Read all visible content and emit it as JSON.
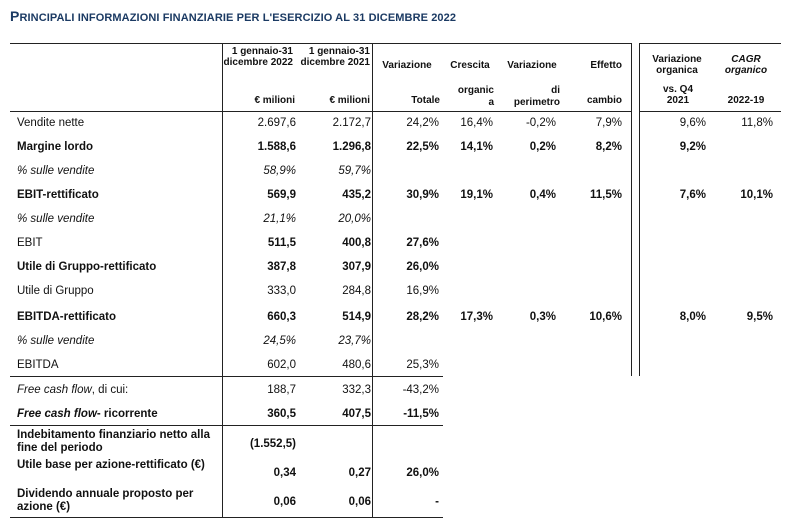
{
  "title": {
    "lead": "P",
    "rest": "RINCIPALI INFORMAZIONI FINANZIARIE PER L'ESERCIZIO AL 31 DICEMBRE 2022"
  },
  "headers": {
    "col1": "1 gennaio-31 dicembre 2022",
    "col1_unit": "€ milioni",
    "col2": "1 gennaio-31 dicembre 2021",
    "col2_unit": "€ milioni",
    "col3": "Variazione",
    "col3_sub": "Totale",
    "col4": "Crescita",
    "col4_sub": "organic a",
    "col5": "Variazione",
    "col5_sub": "di perimetro",
    "col6": "Effetto",
    "col6_sub": "cambio",
    "col7": "Variazione organica",
    "col7_sub": "vs. Q4 2021",
    "col8": "CAGR organico",
    "col8_sub": "2022-19"
  },
  "rows": [
    {
      "label": "Vendite nette",
      "v": [
        "2.697,6",
        "2.172,7",
        "24,2%",
        "16,4%",
        "-0,2%",
        "7,9%",
        "9,6%",
        "11,8%"
      ]
    },
    {
      "label": "Margine lordo",
      "v": [
        "1.588,6",
        "1.296,8",
        "22,5%",
        "14,1%",
        "0,2%",
        "8,2%",
        "9,2%",
        ""
      ]
    },
    {
      "label": "% sulle vendite",
      "v": [
        "58,9%",
        "59,7%",
        "",
        "",
        "",
        "",
        "",
        ""
      ]
    },
    {
      "label": "EBIT-rettificato",
      "v": [
        "569,9",
        "435,2",
        "30,9%",
        "19,1%",
        "0,4%",
        "11,5%",
        "7,6%",
        "10,1%"
      ]
    },
    {
      "label": "% sulle vendite",
      "v": [
        "21,1%",
        "20,0%",
        "",
        "",
        "",
        "",
        "",
        ""
      ]
    },
    {
      "label": "EBIT",
      "v": [
        "511,5",
        "400,8",
        "27,6%",
        "",
        "",
        "",
        "",
        ""
      ]
    },
    {
      "label": "Utile di Gruppo-rettificato",
      "v": [
        "387,8",
        "307,9",
        "26,0%",
        "",
        "",
        "",
        "",
        ""
      ]
    },
    {
      "label": "Utile di Gruppo",
      "v": [
        "333,0",
        "284,8",
        "16,9%",
        "",
        "",
        "",
        "",
        ""
      ]
    },
    {
      "label": "EBITDA-rettificato",
      "v": [
        "660,3",
        "514,9",
        "28,2%",
        "17,3%",
        "0,3%",
        "10,6%",
        "8,0%",
        "9,5%"
      ]
    },
    {
      "label": "% sulle vendite",
      "v": [
        "24,5%",
        "23,7%",
        "",
        "",
        "",
        "",
        "",
        ""
      ]
    },
    {
      "label": "EBITDA",
      "v": [
        "602,0",
        "480,6",
        "25,3%",
        "",
        "",
        "",
        "",
        ""
      ]
    }
  ],
  "fcf_rows": [
    {
      "label_i": "Free cash flow",
      "label_rest": ", di cui:",
      "v": [
        "188,7",
        "332,3",
        "-43,2%"
      ]
    },
    {
      "label_i": "Free cash flow",
      "label_rest": "- ricorrente",
      "v": [
        "360,5",
        "407,5",
        "-11,5%"
      ]
    }
  ],
  "extra_rows": [
    {
      "label": "Indebitamento finanziario netto alla fine del periodo",
      "v": [
        "(1.552,5)",
        "",
        ""
      ]
    },
    {
      "label": "Utile base per azione-rettificato (€)",
      "v": [
        "0,34",
        "0,27",
        "26,0%"
      ]
    },
    {
      "label": "Dividendo annuale proposto per azione (€)",
      "v": [
        "0,06",
        "0,06",
        "-"
      ]
    }
  ]
}
